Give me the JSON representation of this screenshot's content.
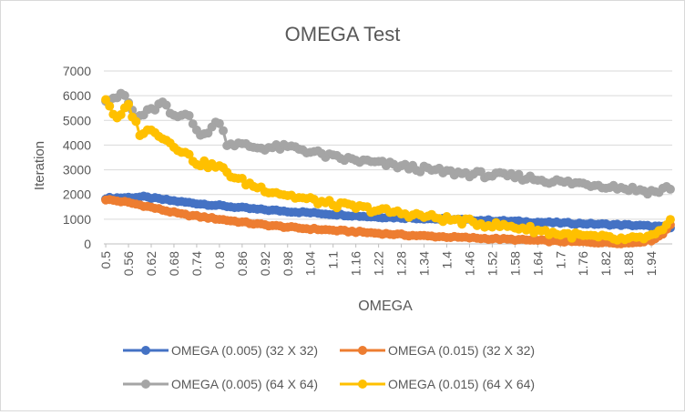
{
  "chart_data": {
    "type": "line",
    "title": "OMEGA Test",
    "xlabel": "OMEGA",
    "ylabel": "Iteration",
    "ylim": [
      0,
      7000
    ],
    "yticks": [
      "0",
      "1000",
      "2000",
      "3000",
      "4000",
      "5000",
      "6000",
      "7000"
    ],
    "xlim": [
      0.5,
      1.99
    ],
    "x_step": 0.01,
    "xticks": [
      "0.5",
      "0.56",
      "0.62",
      "0.68",
      "0.74",
      "0.8",
      "0.86",
      "0.92",
      "0.98",
      "1.04",
      "1.1",
      "1.16",
      "1.22",
      "1.28",
      "1.34",
      "1.4",
      "1.46",
      "1.52",
      "1.58",
      "1.64",
      "1.7",
      "1.76",
      "1.82",
      "1.88",
      "1.94"
    ],
    "grid": "horizontal",
    "legend_position": "bottom",
    "series": [
      {
        "name": "OMEGA (0.005) (32 X 32)",
        "color": "#4472C4",
        "anchors": [
          [
            0.5,
            1850
          ],
          [
            0.6,
            1900
          ],
          [
            0.7,
            1700
          ],
          [
            0.8,
            1550
          ],
          [
            0.9,
            1400
          ],
          [
            1.0,
            1300
          ],
          [
            1.1,
            1200
          ],
          [
            1.2,
            1100
          ],
          [
            1.3,
            1050
          ],
          [
            1.4,
            1000
          ],
          [
            1.5,
            950
          ],
          [
            1.6,
            900
          ],
          [
            1.7,
            850
          ],
          [
            1.8,
            800
          ],
          [
            1.9,
            750
          ],
          [
            1.96,
            700
          ],
          [
            1.99,
            650
          ]
        ]
      },
      {
        "name": "OMEGA (0.015) (32 X 32)",
        "color": "#ED7D31",
        "anchors": [
          [
            0.5,
            1800
          ],
          [
            0.55,
            1700
          ],
          [
            0.6,
            1550
          ],
          [
            0.7,
            1200
          ],
          [
            0.8,
            1000
          ],
          [
            0.9,
            800
          ],
          [
            1.0,
            650
          ],
          [
            1.1,
            550
          ],
          [
            1.2,
            450
          ],
          [
            1.3,
            350
          ],
          [
            1.4,
            280
          ],
          [
            1.5,
            220
          ],
          [
            1.6,
            160
          ],
          [
            1.7,
            100
          ],
          [
            1.8,
            60
          ],
          [
            1.88,
            30
          ],
          [
            1.94,
            150
          ],
          [
            1.97,
            400
          ],
          [
            1.99,
            800
          ]
        ]
      },
      {
        "name": "OMEGA (0.005) (64 X 64)",
        "color": "#A5A5A5",
        "anchors": [
          [
            0.5,
            5900
          ],
          [
            0.55,
            6000
          ],
          [
            0.58,
            5100
          ],
          [
            0.62,
            5400
          ],
          [
            0.65,
            5700
          ],
          [
            0.68,
            5100
          ],
          [
            0.72,
            5300
          ],
          [
            0.75,
            4300
          ],
          [
            0.8,
            5000
          ],
          [
            0.82,
            4100
          ],
          [
            0.9,
            3900
          ],
          [
            1.0,
            3900
          ],
          [
            1.05,
            3700
          ],
          [
            1.1,
            3500
          ],
          [
            1.2,
            3300
          ],
          [
            1.3,
            3100
          ],
          [
            1.4,
            2900
          ],
          [
            1.5,
            2800
          ],
          [
            1.6,
            2700
          ],
          [
            1.7,
            2500
          ],
          [
            1.8,
            2400
          ],
          [
            1.9,
            2200
          ],
          [
            1.95,
            2100
          ],
          [
            1.99,
            2300
          ]
        ]
      },
      {
        "name": "OMEGA (0.015) (64 X 64)",
        "color": "#FFC000",
        "anchors": [
          [
            0.5,
            5900
          ],
          [
            0.53,
            5000
          ],
          [
            0.56,
            5600
          ],
          [
            0.59,
            4500
          ],
          [
            0.63,
            4600
          ],
          [
            0.66,
            4200
          ],
          [
            0.7,
            3800
          ],
          [
            0.74,
            3300
          ],
          [
            0.8,
            3100
          ],
          [
            0.85,
            2600
          ],
          [
            0.9,
            2300
          ],
          [
            1.0,
            1900
          ],
          [
            1.1,
            1600
          ],
          [
            1.2,
            1400
          ],
          [
            1.3,
            1200
          ],
          [
            1.4,
            1000
          ],
          [
            1.5,
            800
          ],
          [
            1.6,
            650
          ],
          [
            1.7,
            400
          ],
          [
            1.8,
            250
          ],
          [
            1.88,
            150
          ],
          [
            1.94,
            300
          ],
          [
            1.97,
            500
          ],
          [
            1.99,
            900
          ]
        ]
      }
    ]
  }
}
